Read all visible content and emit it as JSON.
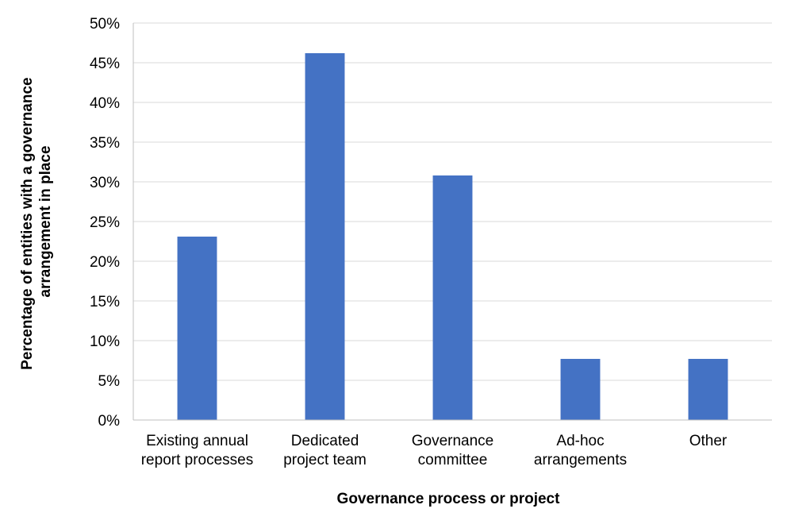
{
  "chart_data": {
    "type": "bar",
    "title": "",
    "xlabel": "Governance process or project",
    "ylabel_lines": [
      "Percentage of entities with a governance",
      "arrangement in place"
    ],
    "categories": [
      [
        "Existing annual",
        "report processes"
      ],
      [
        "Dedicated",
        "project team"
      ],
      [
        "Governance",
        "committee"
      ],
      [
        "Ad-hoc",
        "arrangements"
      ],
      [
        "Other"
      ]
    ],
    "values": [
      23.1,
      46.2,
      30.8,
      7.7,
      7.7
    ],
    "ylim": [
      0,
      50
    ],
    "yticks": [
      0,
      5,
      10,
      15,
      20,
      25,
      30,
      35,
      40,
      45,
      50
    ],
    "ytick_suffix": "%",
    "grid": true,
    "legend": "none",
    "bar_color": "#4472C4",
    "grid_color": "#D9D9D9",
    "axis_color": "#BFBFBF"
  }
}
